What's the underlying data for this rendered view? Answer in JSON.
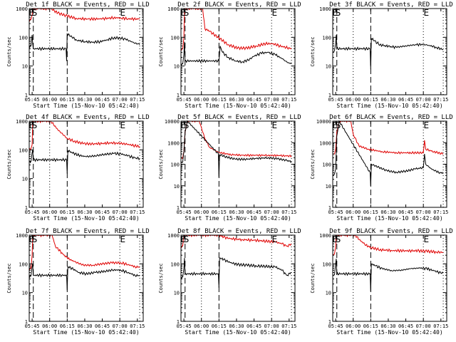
{
  "chart_data": {
    "type": "line",
    "layout": "3x3 grid",
    "common": {
      "xlabel": "Start Time (15-Nov-10 05:42:40)",
      "ylabel": "Counts/sec",
      "x_ticks": [
        "05:45",
        "06:00",
        "06:15",
        "06:30",
        "06:45",
        "07:00",
        "07:15"
      ],
      "x_tick_minutes": [
        0,
        15,
        30,
        45,
        60,
        75,
        90
      ],
      "xlim_minutes": [
        -2.5,
        95
      ],
      "y_scale": "log",
      "series_legend": {
        "black": "Events",
        "red": "LLD"
      },
      "vertical_markers": {
        "dashed_minutes": [
          1,
          30
        ],
        "dotted_minutes": [
          15,
          75,
          92
        ]
      },
      "marker_labels": [
        {
          "text": "E",
          "minute": -1
        },
        {
          "text": "S",
          "minute": 1.5
        },
        {
          "text": "E",
          "minute": 77
        }
      ],
      "colors": {
        "black": "#000000",
        "red": "#e00000"
      }
    },
    "panels": [
      {
        "title": "Det 1f BLACK = Events, RED = LLD",
        "ylim": [
          1,
          1000
        ],
        "y_ticks": [
          "1",
          "10",
          "100",
          "1000"
        ],
        "black": [
          [
            -2.5,
            50
          ],
          [
            -1,
            50
          ],
          [
            0,
            120
          ],
          [
            0.5,
            60
          ],
          [
            1,
            40
          ],
          [
            29,
            40
          ],
          [
            29.5,
            15
          ],
          [
            30,
            130
          ],
          [
            33,
            110
          ],
          [
            38,
            80
          ],
          [
            45,
            70
          ],
          [
            52,
            68
          ],
          [
            58,
            70
          ],
          [
            64,
            82
          ],
          [
            70,
            95
          ],
          [
            75,
            95
          ],
          [
            80,
            85
          ],
          [
            85,
            70
          ],
          [
            90,
            58
          ],
          [
            92,
            55
          ]
        ],
        "red": [
          [
            -2.5,
            420
          ],
          [
            -1,
            420
          ],
          [
            0,
            600
          ],
          [
            0.5,
            1000
          ],
          [
            16,
            1000
          ],
          [
            22,
            700
          ],
          [
            30,
            550
          ],
          [
            38,
            450
          ],
          [
            48,
            430
          ],
          [
            60,
            440
          ],
          [
            70,
            480
          ],
          [
            76,
            470
          ],
          [
            82,
            440
          ],
          [
            92,
            430
          ]
        ]
      },
      {
        "title": "Det 2f BLACK = Events, RED = LLD",
        "ylim": [
          1,
          1000
        ],
        "y_ticks": [
          "1",
          "10",
          "100",
          "1000"
        ],
        "black": [
          [
            -2.5,
            12
          ],
          [
            -1,
            12
          ],
          [
            0,
            25
          ],
          [
            0.5,
            70
          ],
          [
            1,
            15
          ],
          [
            30,
            15
          ],
          [
            31,
            50
          ],
          [
            33,
            30
          ],
          [
            38,
            20
          ],
          [
            44,
            15
          ],
          [
            50,
            14
          ],
          [
            55,
            16
          ],
          [
            60,
            22
          ],
          [
            66,
            28
          ],
          [
            72,
            30
          ],
          [
            78,
            25
          ],
          [
            84,
            18
          ],
          [
            89,
            13
          ],
          [
            92,
            12
          ]
        ],
        "red": [
          [
            -2.5,
            40
          ],
          [
            -1,
            40
          ],
          [
            0,
            100
          ],
          [
            0.5,
            1000
          ],
          [
            16,
            1000
          ],
          [
            18,
            200
          ],
          [
            22,
            160
          ],
          [
            30,
            95
          ],
          [
            38,
            55
          ],
          [
            46,
            42
          ],
          [
            54,
            42
          ],
          [
            62,
            50
          ],
          [
            70,
            60
          ],
          [
            76,
            60
          ],
          [
            82,
            50
          ],
          [
            92,
            40
          ]
        ]
      },
      {
        "title": "Det 3f BLACK = Events, RED = LLD",
        "ylim": [
          1,
          1000
        ],
        "y_ticks": [
          "1",
          "10",
          "100",
          "1000"
        ],
        "black": [
          [
            -2.5,
            30
          ],
          [
            -1,
            35
          ],
          [
            0,
            60
          ],
          [
            0.5,
            120
          ],
          [
            1,
            40
          ],
          [
            29.5,
            40
          ],
          [
            30,
            8
          ],
          [
            30.5,
            90
          ],
          [
            33,
            75
          ],
          [
            38,
            55
          ],
          [
            45,
            48
          ],
          [
            52,
            45
          ],
          [
            60,
            50
          ],
          [
            68,
            55
          ],
          [
            75,
            57
          ],
          [
            80,
            52
          ],
          [
            86,
            45
          ],
          [
            92,
            37
          ]
        ],
        "red": []
      },
      {
        "title": "Det 4f BLACK = Events, RED = LLD",
        "ylim": [
          1,
          1000
        ],
        "y_ticks": [
          "1",
          "10",
          "100",
          "1000"
        ],
        "black": [
          [
            -2.5,
            40
          ],
          [
            -1,
            40
          ],
          [
            0,
            80
          ],
          [
            0.5,
            100
          ],
          [
            1,
            45
          ],
          [
            29.5,
            45
          ],
          [
            30,
            15
          ],
          [
            30.5,
            95
          ],
          [
            34,
            80
          ],
          [
            40,
            65
          ],
          [
            46,
            58
          ],
          [
            54,
            62
          ],
          [
            62,
            70
          ],
          [
            70,
            75
          ],
          [
            76,
            72
          ],
          [
            82,
            62
          ],
          [
            88,
            52
          ],
          [
            92,
            50
          ]
        ],
        "red": [
          [
            -2.5,
            110
          ],
          [
            -1,
            110
          ],
          [
            0,
            150
          ],
          [
            0.5,
            1000
          ],
          [
            16,
            1000
          ],
          [
            22,
            500
          ],
          [
            30,
            250
          ],
          [
            36,
            200
          ],
          [
            44,
            165
          ],
          [
            52,
            160
          ],
          [
            62,
            170
          ],
          [
            72,
            175
          ],
          [
            80,
            160
          ],
          [
            92,
            130
          ]
        ]
      },
      {
        "title": "Det 5f BLACK = Events, RED = LLD",
        "ylim": [
          1,
          10000
        ],
        "y_ticks": [
          "1",
          "10",
          "100",
          "1000",
          "10000"
        ],
        "black": [
          [
            -2.5,
            120
          ],
          [
            -1,
            130
          ],
          [
            0,
            400
          ],
          [
            1,
            3000
          ],
          [
            3,
            10000
          ],
          [
            29.5,
            300
          ],
          [
            30,
            25
          ],
          [
            30.5,
            280
          ],
          [
            36,
            220
          ],
          [
            44,
            170
          ],
          [
            52,
            170
          ],
          [
            62,
            185
          ],
          [
            72,
            200
          ],
          [
            80,
            180
          ],
          [
            88,
            150
          ],
          [
            92,
            130
          ]
        ],
        "red": [
          [
            -2.5,
            200
          ],
          [
            -1,
            200
          ],
          [
            0,
            400
          ],
          [
            1,
            3000
          ],
          [
            3,
            10000
          ],
          [
            13,
            10000
          ],
          [
            15,
            5000
          ],
          [
            18,
            1500
          ],
          [
            22,
            600
          ],
          [
            30,
            350
          ],
          [
            40,
            280
          ],
          [
            50,
            260
          ],
          [
            62,
            260
          ],
          [
            72,
            260
          ],
          [
            82,
            250
          ],
          [
            92,
            240
          ]
        ]
      },
      {
        "title": "Det 6f BLACK = Events, RED = LLD",
        "ylim": [
          1,
          10000
        ],
        "y_ticks": [
          "1",
          "10",
          "100",
          "1000",
          "10000"
        ],
        "black": [
          [
            -2.5,
            30
          ],
          [
            -1,
            35
          ],
          [
            0,
            60
          ],
          [
            1,
            2000
          ],
          [
            3,
            10000
          ],
          [
            29.5,
            40
          ],
          [
            30,
            10
          ],
          [
            30.5,
            100
          ],
          [
            36,
            75
          ],
          [
            44,
            50
          ],
          [
            52,
            42
          ],
          [
            60,
            48
          ],
          [
            68,
            60
          ],
          [
            75,
            70
          ],
          [
            76,
            300
          ],
          [
            77,
            100
          ],
          [
            82,
            60
          ],
          [
            88,
            42
          ],
          [
            92,
            38
          ]
        ],
        "red": [
          [
            -2.5,
            300
          ],
          [
            -1,
            300
          ],
          [
            0,
            500
          ],
          [
            1,
            3000
          ],
          [
            3,
            10000
          ],
          [
            13,
            10000
          ],
          [
            15,
            2500
          ],
          [
            20,
            700
          ],
          [
            28,
            500
          ],
          [
            40,
            380
          ],
          [
            52,
            340
          ],
          [
            64,
            340
          ],
          [
            75,
            340
          ],
          [
            76,
            1300
          ],
          [
            77,
            500
          ],
          [
            84,
            380
          ],
          [
            92,
            300
          ]
        ]
      },
      {
        "title": "Det 7f BLACK = Events, RED = LLD",
        "ylim": [
          1,
          1000
        ],
        "y_ticks": [
          "1",
          "10",
          "100",
          "1000"
        ],
        "black": [
          [
            -2.5,
            38
          ],
          [
            -1,
            38
          ],
          [
            0,
            80
          ],
          [
            0.5,
            100
          ],
          [
            1,
            40
          ],
          [
            29.5,
            40
          ],
          [
            30,
            12
          ],
          [
            30.5,
            80
          ],
          [
            34,
            70
          ],
          [
            40,
            50
          ],
          [
            46,
            45
          ],
          [
            54,
            50
          ],
          [
            62,
            55
          ],
          [
            70,
            62
          ],
          [
            76,
            60
          ],
          [
            82,
            50
          ],
          [
            88,
            40
          ],
          [
            92,
            38
          ]
        ],
        "red": [
          [
            -2.5,
            70
          ],
          [
            -1,
            70
          ],
          [
            0,
            200
          ],
          [
            0.5,
            1000
          ],
          [
            17,
            1000
          ],
          [
            20,
            400
          ],
          [
            26,
            230
          ],
          [
            30,
            160
          ],
          [
            36,
            120
          ],
          [
            44,
            90
          ],
          [
            52,
            90
          ],
          [
            60,
            100
          ],
          [
            68,
            110
          ],
          [
            76,
            108
          ],
          [
            82,
            95
          ],
          [
            88,
            80
          ],
          [
            92,
            75
          ]
        ]
      },
      {
        "title": "Det 8f BLACK = Events, RED = LLD",
        "ylim": [
          1,
          1000
        ],
        "y_ticks": [
          "1",
          "10",
          "100",
          "1000"
        ],
        "black": [
          [
            -2.5,
            35
          ],
          [
            -1,
            35
          ],
          [
            0,
            70
          ],
          [
            0.5,
            160
          ],
          [
            1,
            45
          ],
          [
            29.5,
            45
          ],
          [
            30,
            15
          ],
          [
            30.5,
            160
          ],
          [
            34,
            140
          ],
          [
            40,
            110
          ],
          [
            46,
            95
          ],
          [
            54,
            90
          ],
          [
            62,
            85
          ],
          [
            70,
            82
          ],
          [
            78,
            78
          ],
          [
            84,
            60
          ],
          [
            88,
            40
          ],
          [
            92,
            50
          ]
        ],
        "red": [
          [
            -2.5,
            420
          ],
          [
            -1,
            420
          ],
          [
            0,
            1000
          ],
          [
            30,
            1000
          ],
          [
            34,
            850
          ],
          [
            40,
            750
          ],
          [
            50,
            700
          ],
          [
            60,
            660
          ],
          [
            70,
            620
          ],
          [
            78,
            580
          ],
          [
            84,
            500
          ],
          [
            88,
            420
          ],
          [
            92,
            480
          ]
        ]
      },
      {
        "title": "Det 9f BLACK = Events, RED = LLD",
        "ylim": [
          1,
          1000
        ],
        "y_ticks": [
          "1",
          "10",
          "100",
          "1000"
        ],
        "black": [
          [
            -2.5,
            42
          ],
          [
            -1,
            42
          ],
          [
            0,
            100
          ],
          [
            0.5,
            150
          ],
          [
            1,
            45
          ],
          [
            29.5,
            45
          ],
          [
            30,
            11
          ],
          [
            30.5,
            100
          ],
          [
            34,
            85
          ],
          [
            40,
            68
          ],
          [
            48,
            58
          ],
          [
            56,
            60
          ],
          [
            64,
            68
          ],
          [
            72,
            72
          ],
          [
            78,
            68
          ],
          [
            84,
            58
          ],
          [
            90,
            48
          ],
          [
            92,
            48
          ]
        ],
        "red": [
          [
            -2.5,
            220
          ],
          [
            -1,
            220
          ],
          [
            0,
            400
          ],
          [
            0.5,
            1000
          ],
          [
            17,
            1000
          ],
          [
            20,
            700
          ],
          [
            26,
            450
          ],
          [
            30,
            370
          ],
          [
            38,
            310
          ],
          [
            48,
            290
          ],
          [
            60,
            285
          ],
          [
            70,
            285
          ],
          [
            78,
            275
          ],
          [
            86,
            260
          ],
          [
            92,
            250
          ]
        ]
      }
    ]
  }
}
